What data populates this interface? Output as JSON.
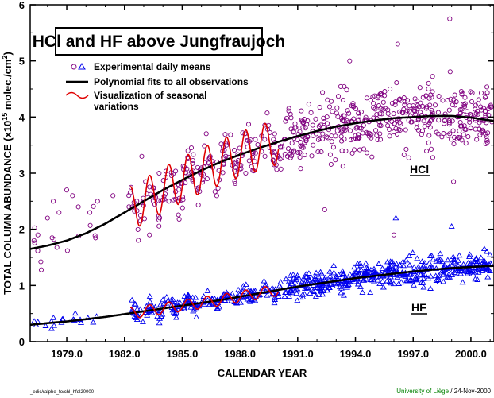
{
  "chart_data": {
    "type": "scatter",
    "title": "HCl and HF above Jungfraujoch",
    "xlabel": "CALENDAR YEAR",
    "ylabel_main": "TOTAL COLUMN ABUNDANCE (x10",
    "ylabel_exp": "15",
    "ylabel_mid": " molec./cm",
    "ylabel_exp2": "2",
    "ylabel_end": ")",
    "xlim": [
      1977.1,
      2001.2
    ],
    "ylim": [
      0,
      6
    ],
    "x_ticks": [
      1979,
      1982,
      1985,
      1988,
      1991,
      1994,
      1997,
      2000
    ],
    "x_tick_labels": [
      "1979.0",
      "1982.0",
      "1985.0",
      "1988.0",
      "1991.0",
      "1994.0",
      "1997.0",
      "2000.0"
    ],
    "y_ticks": [
      0,
      1,
      2,
      3,
      4,
      5,
      6
    ],
    "y_tick_labels": [
      "0",
      "1",
      "2",
      "3",
      "4",
      "5",
      "6"
    ],
    "legend": {
      "placement": "upper-left",
      "entries": [
        {
          "label": "Experimental daily means",
          "marker": "circle-triangle",
          "color": "#800080"
        },
        {
          "label": "Polynomial fits to all observations",
          "marker": "line",
          "color": "#000000"
        },
        {
          "label_line1": "Visualization of seasonal",
          "label_line2": "variations",
          "marker": "line",
          "color": "#e00000"
        }
      ]
    },
    "series": [
      {
        "name": "HCl",
        "marker": "circle",
        "color": "#800080",
        "fit_x": [
          1977.1,
          1978,
          1979,
          1980,
          1981,
          1982,
          1983,
          1984,
          1985,
          1986,
          1987,
          1988,
          1989,
          1990,
          1991,
          1992,
          1993,
          1994,
          1995,
          1996,
          1997,
          1998,
          1999,
          2000,
          2001.2
        ],
        "fit_y": [
          1.65,
          1.71,
          1.8,
          1.93,
          2.1,
          2.3,
          2.5,
          2.7,
          2.88,
          3.05,
          3.2,
          3.33,
          3.45,
          3.56,
          3.66,
          3.75,
          3.83,
          3.89,
          3.94,
          3.98,
          4.0,
          4.02,
          4.02,
          3.99,
          3.93
        ],
        "seasonal_x": [
          1982.3,
          1990.0
        ],
        "seasonal_amplitude": 0.4,
        "scatter_sample": {
          "x": [
            1977.3,
            1977.5,
            1978.0,
            1978.3,
            1978.6,
            1979.0,
            1979.3,
            1979.6,
            1980.2,
            1980.6,
            1981.4,
            1982.4,
            1982.9,
            1983.3,
            1983.8,
            1984.3,
            1984.8,
            1985.3,
            1985.8,
            1986.3,
            1986.8,
            1987.3,
            1987.8,
            1988.3,
            1988.8,
            1989.3,
            1989.8,
            1990.3,
            1990.8,
            1991.3,
            1991.8,
            1992.3,
            1992.8,
            1993.3,
            1993.8,
            1994.3,
            1994.8,
            1995.3,
            1995.8,
            1996.3,
            1996.8,
            1997.3,
            1997.8,
            1998.3,
            1998.8,
            1999.3,
            1999.8,
            2000.3,
            2000.8,
            1993.7,
            1996.2,
            1998.9,
            1999.1,
            1992.4,
            1996.0
          ],
          "y": [
            1.8,
            1.9,
            2.2,
            2.5,
            2.3,
            2.7,
            2.6,
            2.4,
            2.3,
            2.5,
            2.6,
            2.4,
            3.3,
            1.9,
            3.0,
            2.5,
            2.8,
            3.4,
            3.1,
            2.9,
            3.2,
            3.5,
            3.2,
            3.0,
            3.6,
            3.3,
            3.7,
            3.6,
            3.4,
            3.9,
            3.5,
            3.7,
            4.1,
            3.4,
            4.2,
            3.8,
            4.3,
            3.6,
            4.5,
            3.9,
            4.2,
            4.0,
            4.6,
            3.7,
            4.3,
            4.0,
            4.1,
            3.6,
            3.9,
            5.0,
            5.3,
            5.75,
            2.85,
            2.35,
            1.9
          ]
        }
      },
      {
        "name": "HF",
        "marker": "triangle",
        "color": "#0000ee",
        "fit_x": [
          1977.1,
          1978,
          1979,
          1980,
          1981,
          1982,
          1983,
          1984,
          1985,
          1986,
          1987,
          1988,
          1989,
          1990,
          1991,
          1992,
          1993,
          1994,
          1995,
          1996,
          1997,
          1998,
          1999,
          2000,
          2001.2
        ],
        "fit_y": [
          0.3,
          0.33,
          0.36,
          0.4,
          0.44,
          0.49,
          0.54,
          0.59,
          0.64,
          0.69,
          0.74,
          0.8,
          0.86,
          0.92,
          0.98,
          1.03,
          1.08,
          1.13,
          1.17,
          1.21,
          1.25,
          1.28,
          1.31,
          1.33,
          1.35
        ],
        "seasonal_x": [
          1982.3,
          1990.0
        ],
        "seasonal_amplitude": 0.1,
        "scatter_sample": {
          "x": [
            1977.5,
            1978.2,
            1978.8,
            1979.4,
            1980.1,
            1982.5,
            1983.2,
            1983.9,
            1984.5,
            1985.1,
            1985.7,
            1986.4,
            1987.0,
            1987.6,
            1988.2,
            1988.8,
            1989.4,
            1990.0,
            1990.6,
            1991.2,
            1991.8,
            1992.4,
            1993.0,
            1993.6,
            1994.2,
            1994.8,
            1995.4,
            1996.0,
            1996.5,
            1997.0,
            1997.6,
            1998.2,
            1998.8,
            1999.4,
            2000.0,
            2000.6,
            1996.1,
            1999.0,
            2000.7
          ],
          "y": [
            0.35,
            0.36,
            0.4,
            0.38,
            0.42,
            0.5,
            0.55,
            0.45,
            0.7,
            0.6,
            0.78,
            0.65,
            0.75,
            0.85,
            0.8,
            0.9,
            0.95,
            0.8,
            1.0,
            1.05,
            0.9,
            1.1,
            1.15,
            1.0,
            1.2,
            1.1,
            1.3,
            1.25,
            1.35,
            1.2,
            1.4,
            1.3,
            1.45,
            1.25,
            1.4,
            1.3,
            2.2,
            2.05,
            1.65
          ]
        }
      }
    ]
  },
  "footer": {
    "left": "_edic/ralphe_fo/chl_hfdl20000",
    "right_org": "University of Liège",
    "right_date": " / 24-Nov-2000"
  },
  "colors": {
    "hcl": "#800080",
    "hf": "#0000ee",
    "fit": "#000000",
    "seasonal": "#e00000",
    "footer_green": "#008000"
  }
}
